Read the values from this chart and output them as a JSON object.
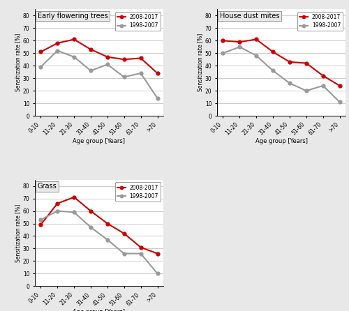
{
  "age_groups": [
    "0-10",
    "11-20",
    "21-30",
    "31-40",
    "41-50",
    "51-60",
    "61-70",
    ">70"
  ],
  "early_trees": {
    "title": "Early flowering trees",
    "decade2": [
      51,
      58,
      61,
      53,
      47,
      45,
      46,
      34
    ],
    "decade1": [
      39,
      52,
      47,
      36,
      41,
      31,
      34,
      14
    ]
  },
  "hdm": {
    "title": "House dust mites",
    "decade2": [
      60,
      59,
      61,
      51,
      43,
      42,
      32,
      24
    ],
    "decade1": [
      50,
      55,
      48,
      36,
      26,
      20,
      24,
      11
    ]
  },
  "grass": {
    "title": "Grass",
    "decade2": [
      49,
      66,
      71,
      60,
      50,
      42,
      31,
      26
    ],
    "decade1": [
      53,
      60,
      59,
      47,
      37,
      26,
      26,
      10
    ]
  },
  "color_decade2": "#cc0000",
  "color_decade1": "#999999",
  "label_decade2": "2008-2017",
  "label_decade1": "1998-2007",
  "ylabel": "Sensitization rate [%]",
  "xlabel": "Age group [Years]",
  "ylim": [
    0,
    85
  ],
  "yticks": [
    0,
    10,
    20,
    30,
    40,
    50,
    60,
    70,
    80
  ],
  "fig_bg": "#e8e8e8",
  "plot_bg": "#ffffff"
}
